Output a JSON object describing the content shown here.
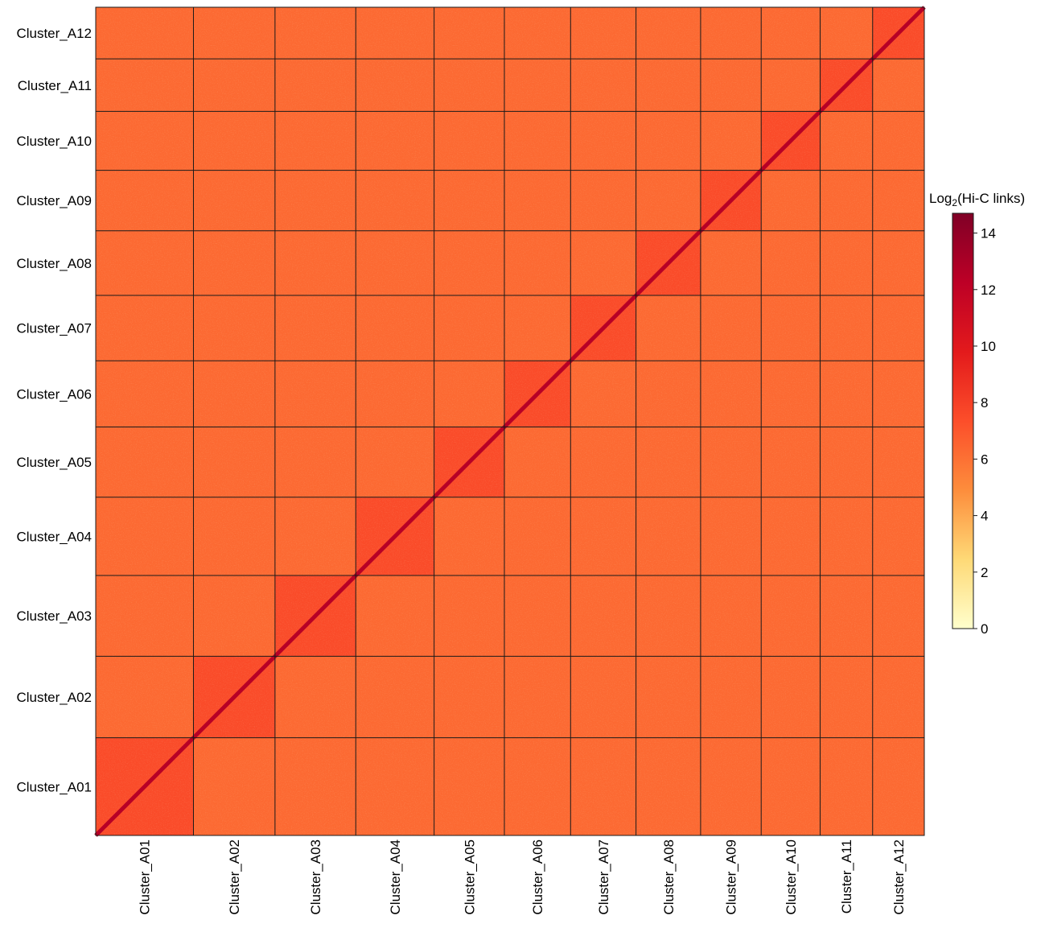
{
  "chart_data": {
    "type": "heatmap",
    "title": "",
    "clusters": [
      "Cluster_A01",
      "Cluster_A02",
      "Cluster_A03",
      "Cluster_A04",
      "Cluster_A05",
      "Cluster_A06",
      "Cluster_A07",
      "Cluster_A08",
      "Cluster_A09",
      "Cluster_A10",
      "Cluster_A11",
      "Cluster_A12"
    ],
    "cluster_relative_sizes": [
      121,
      101,
      100,
      97,
      87,
      82,
      81,
      80,
      75,
      73,
      65,
      64
    ],
    "colorbar": {
      "label_main": "Log",
      "label_sub": "2",
      "label_rest": "(Hi-C links)",
      "ticks": [
        0,
        2,
        4,
        6,
        8,
        10,
        12,
        14
      ],
      "range": [
        0,
        14.7
      ],
      "colors": [
        "#ffffcc",
        "#fed976",
        "#fd8d3c",
        "#fc4e2a",
        "#e31a1c",
        "#bd0026",
        "#800026"
      ]
    },
    "values_log2": {
      "inter_cluster_background": 6.3,
      "intra_cluster_block": 7.5,
      "diagonal": 12.5
    },
    "grid_on": true,
    "x_tick_rotation": "vertical"
  }
}
